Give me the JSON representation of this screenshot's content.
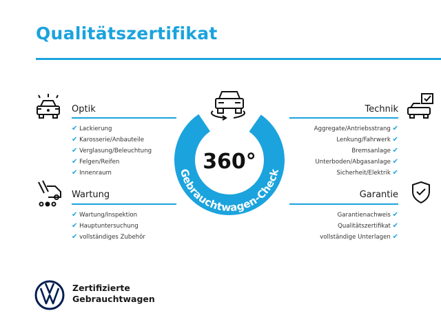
{
  "title": "Qualitätszertifikat",
  "ring": {
    "center_label": "360°",
    "arc_label": "Gebrauchtwagen-Check",
    "color": "#1ba3dd"
  },
  "sections": {
    "optik": {
      "label": "Optik",
      "icon": "car-lights-icon",
      "items": [
        "Lackierung",
        "Karosserie/Anbauteile",
        "Verglasung/Beleuchtung",
        "Felgen/Reifen",
        "Innenraum"
      ]
    },
    "wartung": {
      "label": "Wartung",
      "icon": "service-van-icon",
      "items": [
        "Wartung/Inspektion",
        "Hauptuntersuchung",
        "vollständiges Zubehör"
      ]
    },
    "technik": {
      "label": "Technik",
      "icon": "car-check-icon",
      "items": [
        "Aggregate/Antriebsstrang",
        "Lenkung/Fahrwerk",
        "Bremsanlage",
        "Unterboden/Abgasanlage",
        "Sicherheit/Elektrik"
      ]
    },
    "garantie": {
      "label": "Garantie",
      "icon": "shield-check-icon",
      "items": [
        "Garantienachweis",
        "Qualitätszertifikat",
        "vollständige Unterlagen"
      ]
    }
  },
  "check_mark": "✔",
  "footer": {
    "line1": "Zertifizierte",
    "line2": "Gebrauchtwagen",
    "logo": "VW"
  }
}
